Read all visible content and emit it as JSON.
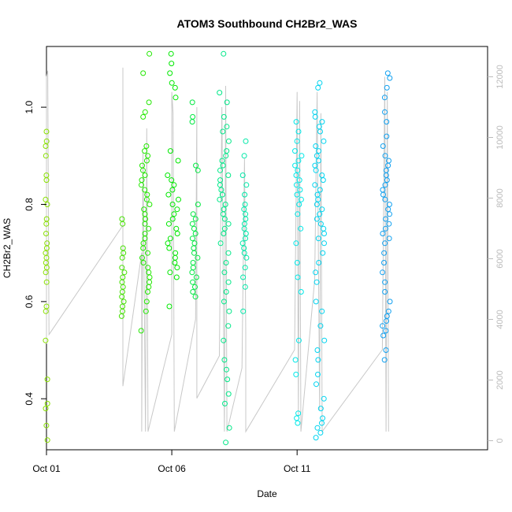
{
  "chart_data": {
    "type": "scatter",
    "title": "ATOM3 Southbound CH2Br2_WAS",
    "xlabel": "Date",
    "ylabel": "CH2Br2_WAS",
    "xlim": [
      0.0,
      17.6
    ],
    "ylim": [
      0.295,
      1.125
    ],
    "x_ticks": [
      {
        "value": 0.0,
        "label": "Oct 01"
      },
      {
        "value": 5.0,
        "label": "Oct 06"
      },
      {
        "value": 10.0,
        "label": "Oct 11"
      }
    ],
    "y_ticks": [
      0.4,
      0.6,
      0.8,
      1.0
    ],
    "y2_ticks": [
      0,
      2000,
      4000,
      6000,
      8000,
      10000,
      12000
    ],
    "y2lim": [
      -300,
      13000
    ],
    "colors": {
      "grid_line": "#c8c8c8",
      "right_axis": "#bbbbbb"
    },
    "series": [
      {
        "color": "#88e000",
        "x_center": 0.0,
        "x_spread": 0.04,
        "values": [
          0.95,
          0.93,
          0.92,
          0.9,
          0.86,
          0.85,
          0.81,
          0.8,
          0.77,
          0.76,
          0.74,
          0.72,
          0.71,
          0.7,
          0.69,
          0.68,
          0.67,
          0.66,
          0.64,
          0.59,
          0.58,
          0.52,
          0.44,
          0.39,
          0.38,
          0.345,
          0.315
        ]
      },
      {
        "color": "#44e000",
        "x_center": 3.05,
        "x_spread": 0.06,
        "values": [
          0.77,
          0.76,
          0.71,
          0.7,
          0.69,
          0.67,
          0.66,
          0.65,
          0.64,
          0.63,
          0.62,
          0.61,
          0.6,
          0.59,
          0.58,
          0.57
        ]
      },
      {
        "color": "#22e800",
        "x_center": 3.95,
        "x_spread": 0.18,
        "values": [
          1.11,
          1.07,
          1.01,
          0.99,
          0.98,
          0.92,
          0.91,
          0.9,
          0.89,
          0.88,
          0.87,
          0.86,
          0.85,
          0.84,
          0.83,
          0.82,
          0.81,
          0.8,
          0.79,
          0.78,
          0.77,
          0.76,
          0.75,
          0.74,
          0.73,
          0.72,
          0.71,
          0.7,
          0.69,
          0.68,
          0.67,
          0.66,
          0.65,
          0.64,
          0.63,
          0.62,
          0.6,
          0.58,
          0.54
        ]
      },
      {
        "color": "#00e800",
        "x_center": 5.05,
        "x_spread": 0.22,
        "values": [
          1.11,
          1.09,
          1.07,
          1.05,
          1.04,
          1.02,
          0.91,
          0.89,
          0.86,
          0.85,
          0.84,
          0.83,
          0.82,
          0.81,
          0.8,
          0.79,
          0.78,
          0.77,
          0.76,
          0.75,
          0.74,
          0.73,
          0.72,
          0.71,
          0.7,
          0.69,
          0.68,
          0.67,
          0.66,
          0.65,
          0.59
        ]
      },
      {
        "color": "#00e840",
        "x_center": 5.95,
        "x_spread": 0.14,
        "values": [
          1.01,
          0.98,
          0.97,
          0.88,
          0.87,
          0.8,
          0.78,
          0.77,
          0.76,
          0.75,
          0.74,
          0.73,
          0.72,
          0.71,
          0.7,
          0.69,
          0.68,
          0.67,
          0.66,
          0.65,
          0.64,
          0.63,
          0.62,
          0.61
        ]
      },
      {
        "color": "#00e888",
        "x_center": 7.1,
        "x_spread": 0.2,
        "values": [
          1.11,
          1.03,
          1.01,
          0.98,
          0.96,
          0.95,
          0.93,
          0.91,
          0.9,
          0.89,
          0.88,
          0.87,
          0.86,
          0.85,
          0.84,
          0.83,
          0.82,
          0.81,
          0.8,
          0.79,
          0.78,
          0.77,
          0.76,
          0.75,
          0.74,
          0.72,
          0.7,
          0.68,
          0.66,
          0.64,
          0.62,
          0.6,
          0.58,
          0.55,
          0.52,
          0.48,
          0.46,
          0.44,
          0.41,
          0.39,
          0.34,
          0.31
        ]
      },
      {
        "color": "#00e8a8",
        "x_center": 7.9,
        "x_spread": 0.08,
        "values": [
          0.93,
          0.9,
          0.86,
          0.84,
          0.82,
          0.8,
          0.79,
          0.78,
          0.77,
          0.76,
          0.75,
          0.74,
          0.73,
          0.72,
          0.71,
          0.7,
          0.69,
          0.67,
          0.65,
          0.63,
          0.58
        ]
      },
      {
        "color": "#00e8e8",
        "x_center": 10.05,
        "x_spread": 0.14,
        "values": [
          0.97,
          0.95,
          0.93,
          0.91,
          0.9,
          0.89,
          0.88,
          0.87,
          0.86,
          0.85,
          0.84,
          0.83,
          0.82,
          0.81,
          0.8,
          0.78,
          0.75,
          0.72,
          0.68,
          0.65,
          0.62,
          0.52,
          0.48,
          0.45,
          0.37,
          0.36,
          0.35
        ]
      },
      {
        "color": "#00d4f0",
        "x_center": 10.9,
        "x_spread": 0.2,
        "values": [
          1.05,
          1.04,
          0.99,
          0.98,
          0.97,
          0.96,
          0.95,
          0.93,
          0.92,
          0.91,
          0.9,
          0.89,
          0.88,
          0.87,
          0.86,
          0.85,
          0.84,
          0.83,
          0.82,
          0.81,
          0.8,
          0.79,
          0.78,
          0.77,
          0.76,
          0.75,
          0.74,
          0.73,
          0.72,
          0.7,
          0.68,
          0.66,
          0.64,
          0.6,
          0.58,
          0.55,
          0.52,
          0.5,
          0.48,
          0.45,
          0.43,
          0.4,
          0.38,
          0.36,
          0.35,
          0.34,
          0.33,
          0.32
        ]
      },
      {
        "color": "#10a0f0",
        "x_center": 13.55,
        "x_spread": 0.16,
        "values": [
          1.07,
          1.06,
          1.04,
          1.02,
          0.99,
          0.97,
          0.94,
          0.92,
          0.9,
          0.89,
          0.88,
          0.87,
          0.86,
          0.85,
          0.84,
          0.83,
          0.82,
          0.81,
          0.8,
          0.79,
          0.78,
          0.77,
          0.76,
          0.75,
          0.74,
          0.73,
          0.72,
          0.7,
          0.68,
          0.66,
          0.64,
          0.62,
          0.6,
          0.58,
          0.57,
          0.56,
          0.55,
          0.54,
          0.53,
          0.5,
          0.48
        ]
      }
    ],
    "altitude_track": {
      "color": "#c8c8c8",
      "points": [
        [
          0.0,
          3200
        ],
        [
          0.0,
          12000
        ],
        [
          0.05,
          12200
        ],
        [
          0.1,
          3500
        ],
        [
          3.05,
          7100
        ],
        [
          3.05,
          12300
        ],
        [
          3.05,
          1800
        ],
        [
          3.8,
          6200
        ],
        [
          3.8,
          300
        ],
        [
          3.85,
          9500
        ],
        [
          3.95,
          300
        ],
        [
          4.0,
          10300
        ],
        [
          4.05,
          300
        ],
        [
          5.0,
          3500
        ],
        [
          5.0,
          11500
        ],
        [
          5.05,
          10800
        ],
        [
          5.1,
          300
        ],
        [
          5.95,
          4000
        ],
        [
          6.0,
          11000
        ],
        [
          6.0,
          1400
        ],
        [
          6.9,
          2800
        ],
        [
          7.0,
          11000
        ],
        [
          7.1,
          300
        ],
        [
          7.15,
          11700
        ],
        [
          7.2,
          300
        ],
        [
          7.8,
          2400
        ],
        [
          7.9,
          9300
        ],
        [
          7.95,
          3500
        ],
        [
          7.95,
          300
        ],
        [
          9.9,
          3000
        ],
        [
          10.0,
          11500
        ],
        [
          10.05,
          800
        ],
        [
          10.1,
          11200
        ],
        [
          10.15,
          300
        ],
        [
          10.7,
          5300
        ],
        [
          10.8,
          11500
        ],
        [
          10.9,
          1000
        ],
        [
          10.95,
          10800
        ],
        [
          11.0,
          300
        ],
        [
          13.4,
          3000
        ],
        [
          13.5,
          12000
        ],
        [
          13.55,
          300
        ],
        [
          13.6,
          11500
        ],
        [
          13.65,
          300
        ]
      ]
    }
  }
}
